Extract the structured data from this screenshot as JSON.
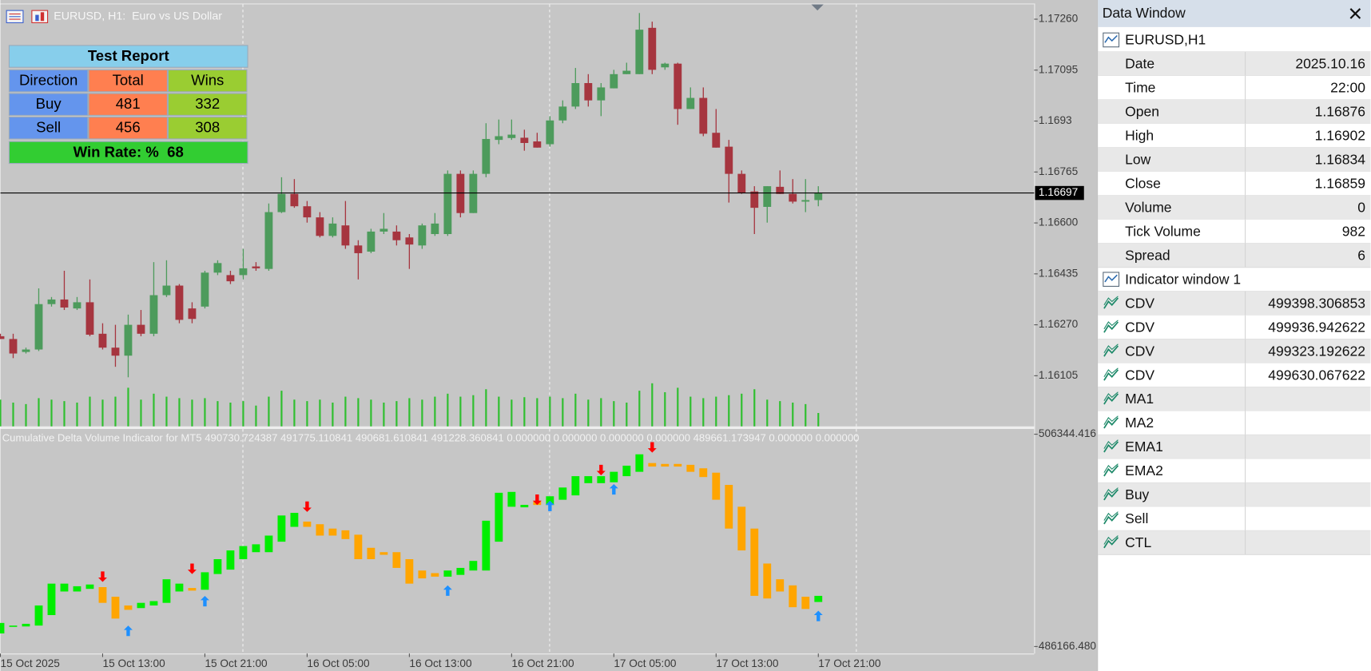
{
  "window_title": "EURUSD, H1:  Euro vs US Dollar",
  "chart_data": [
    {
      "type": "candlestick",
      "categories": [
        "15 Oct 2025",
        null,
        null,
        null,
        null,
        null,
        null,
        null,
        "15 Oct 13:00",
        null,
        null,
        null,
        null,
        null,
        null,
        null,
        "15 Oct 21:00",
        null,
        null,
        null,
        null,
        null,
        null,
        null,
        "16 Oct 05:00",
        null,
        null,
        null,
        null,
        null,
        null,
        null,
        "16 Oct 13:00",
        null,
        null,
        null,
        null,
        null,
        null,
        null,
        "16 Oct 21:00",
        null,
        null,
        null,
        null,
        null,
        null,
        null,
        "17 Oct 05:00",
        null,
        null,
        null,
        null,
        null,
        null,
        null,
        "17 Oct 13:00",
        null,
        null,
        null,
        null,
        null,
        null,
        null,
        "17 Oct 21:00"
      ],
      "open": [
        1.16233,
        1.16224,
        1.16182,
        1.1619,
        1.16337,
        1.16352,
        1.16323,
        1.16343,
        1.16241,
        1.16196,
        1.1617,
        1.1627,
        1.16241,
        1.16366,
        1.16397,
        1.16323,
        1.16329,
        1.16439,
        1.16431,
        1.16431,
        1.16459,
        1.16451,
        1.16635,
        1.16694,
        1.16654,
        1.16618,
        1.16558,
        1.16592,
        1.16527,
        1.16507,
        1.16572,
        1.16572,
        1.16553,
        1.16527,
        1.16564,
        1.16564,
        1.16759,
        1.16632,
        1.16759,
        1.16869,
        1.16875,
        1.16876,
        1.16864,
        1.16855,
        1.16932,
        1.16977,
        1.17053,
        1.16997,
        1.17036,
        1.17082,
        1.17082,
        1.17232,
        1.17104,
        1.17116,
        1.16969,
        1.17005,
        1.16892,
        1.16847,
        1.16759,
        1.16702,
        1.16652,
        1.16717,
        1.16694,
        1.16669,
        1.16674
      ],
      "high": [
        1.16241,
        1.16241,
        1.16196,
        1.16388,
        1.1636,
        1.16445,
        1.1636,
        1.16417,
        1.16275,
        1.1627,
        1.16303,
        1.16318,
        1.16473,
        1.16479,
        1.16402,
        1.16343,
        1.16445,
        1.16479,
        1.16445,
        1.16516,
        1.16473,
        1.16663,
        1.16748,
        1.16742,
        1.16671,
        1.16635,
        1.16618,
        1.16671,
        1.16544,
        1.16581,
        1.16632,
        1.16592,
        1.16564,
        1.16598,
        1.16632,
        1.1677,
        1.1677,
        1.1677,
        1.16923,
        1.16935,
        1.16935,
        1.16902,
        1.16892,
        1.16946,
        1.16997,
        1.17102,
        1.17082,
        1.17053,
        1.17096,
        1.17119,
        1.1728,
        1.17252,
        1.17119,
        1.17119,
        1.17039,
        1.17039,
        1.16969,
        1.16869,
        1.1677,
        1.16719,
        1.16719,
        1.1677,
        1.16742,
        1.16742,
        1.16719
      ],
      "low": [
        1.16224,
        1.16162,
        1.16177,
        1.16185,
        1.16329,
        1.16318,
        1.16318,
        1.16233,
        1.1619,
        1.16134,
        1.161,
        1.16233,
        1.16233,
        1.1636,
        1.16275,
        1.16275,
        1.16323,
        1.16431,
        1.16402,
        1.16417,
        1.16445,
        1.16445,
        1.16632,
        1.16649,
        1.16601,
        1.16553,
        1.16553,
        1.16516,
        1.16417,
        1.16502,
        1.16564,
        1.16527,
        1.16451,
        1.16516,
        1.16558,
        1.16558,
        1.16618,
        1.16632,
        1.16748,
        1.16855,
        1.16869,
        1.16834,
        1.16844,
        1.16847,
        1.16923,
        1.16969,
        1.16977,
        1.16946,
        1.17036,
        1.17082,
        1.17082,
        1.17082,
        1.17096,
        1.16918,
        1.16969,
        1.16881,
        1.16844,
        1.16666,
        1.16694,
        1.16564,
        1.16601,
        1.16694,
        1.16663,
        1.16635,
        1.16654
      ],
      "close": [
        1.16224,
        1.16177,
        1.1619,
        1.16337,
        1.16352,
        1.16326,
        1.16343,
        1.16238,
        1.16196,
        1.1617,
        1.1627,
        1.16241,
        1.16366,
        1.16397,
        1.16286,
        1.16289,
        1.16439,
        1.1647,
        1.16411,
        1.16453,
        1.16453,
        1.16635,
        1.16694,
        1.16654,
        1.16618,
        1.16558,
        1.16598,
        1.16527,
        1.16502,
        1.16572,
        1.16581,
        1.16544,
        1.1653,
        1.16592,
        1.16598,
        1.16759,
        1.16632,
        1.16759,
        1.16872,
        1.16881,
        1.16886,
        1.16859,
        1.16844,
        1.16932,
        1.16977,
        1.17053,
        1.16997,
        1.17039,
        1.17082,
        1.17093,
        1.17226,
        1.17096,
        1.17116,
        1.16969,
        1.17005,
        1.16889,
        1.16844,
        1.16759,
        1.16697,
        1.16649,
        1.16719,
        1.16694,
        1.16669,
        1.16674,
        1.16697
      ],
      "volume": [
        900,
        800,
        750,
        950,
        900,
        850,
        800,
        1000,
        900,
        1000,
        1300,
        900,
        1100,
        1000,
        950,
        900,
        950,
        850,
        800,
        850,
        700,
        1000,
        1200,
        900,
        850,
        900,
        800,
        1000,
        950,
        900,
        800,
        850,
        950,
        900,
        1000,
        1100,
        1000,
        1050,
        1250,
        1000,
        900,
        982,
        950,
        1000,
        950,
        1100,
        900,
        950,
        850,
        800,
        1200,
        1450,
        1150,
        1300,
        1000,
        950,
        1000,
        1050,
        1100,
        1250,
        900,
        850,
        800,
        750,
        450
      ],
      "up_color": "#4d9b5c",
      "down_color": "#a6353f",
      "volume_color": "#2fbf2f",
      "bid": 1.16697,
      "ylim": [
        1.15941,
        1.17308
      ],
      "yticks": [
        {
          "value": 1.1726,
          "label": "1.17260"
        },
        1.17095,
        1.1693,
        {
          "value": 1.16765,
          "label": "1.16765"
        },
        {
          "value": 1.166,
          "label": "1.16600"
        },
        1.16435,
        {
          "value": 1.1627,
          "label": "1.16270"
        },
        1.16105
      ]
    },
    {
      "type": "candlestick",
      "title": "Cumulative Delta Volume Indicator for MT5 490730.724387 491775.110841 490681.610841 491228.360841 0.000000 0.000000 0.000000 0.000000 489661.173947 0.000000 0.000000",
      "open": [
        487411,
        488075,
        488075,
        488158,
        489155,
        491397,
        491397,
        491646,
        491812,
        490899,
        490068,
        489819,
        490068,
        490317,
        491397,
        491729,
        491563,
        493058,
        493473,
        494469,
        495134,
        495134,
        496130,
        497542,
        498040,
        497791,
        497376,
        497210,
        496794,
        495549,
        495134,
        495134,
        494469,
        493390,
        493141,
        492808,
        492975,
        493390,
        493390,
        496130,
        499452,
        499398.306853,
        499950,
        499618,
        500116,
        500531,
        501694,
        501694,
        501777,
        502358,
        502773,
        503604,
        503521,
        503521,
        503438,
        503105,
        502690,
        501528,
        499452,
        497376,
        494054,
        492559,
        491978,
        490899,
        490400
      ],
      "close": [
        488407,
        488158,
        488324,
        490068,
        492144,
        492144,
        491895,
        492061,
        490317,
        488823,
        489653,
        490317,
        490483,
        492559,
        492144,
        491480,
        493224,
        494469,
        495300,
        495715,
        495881,
        496711,
        498621,
        498870,
        497542,
        496711,
        496711,
        496379,
        494469,
        494469,
        494884,
        493639,
        492144,
        492642,
        492808,
        493390,
        493639,
        494303,
        498123,
        500780,
        500863,
        499630.067622,
        499618,
        500448,
        501279,
        502358,
        502358,
        502358,
        502773,
        503355,
        504434,
        503272,
        503272,
        503272,
        502773,
        502275,
        500116,
        497376,
        495300,
        490982,
        490732,
        491397,
        489902,
        489736,
        490982
      ],
      "buy": [
        null,
        null,
        null,
        null,
        null,
        null,
        null,
        null,
        null,
        null,
        487660,
        null,
        null,
        null,
        null,
        null,
        490483,
        null,
        null,
        null,
        null,
        null,
        null,
        null,
        null,
        null,
        null,
        null,
        null,
        null,
        null,
        null,
        null,
        null,
        null,
        491480,
        null,
        null,
        null,
        null,
        null,
        null,
        null,
        499535,
        null,
        null,
        null,
        null,
        501112,
        null,
        null,
        null,
        null,
        null,
        null,
        null,
        null,
        null,
        null,
        null,
        null,
        null,
        null,
        null,
        489072
      ],
      "sell": [
        null,
        null,
        null,
        null,
        null,
        null,
        null,
        null,
        492808,
        null,
        null,
        null,
        null,
        null,
        null,
        493556,
        null,
        null,
        null,
        null,
        null,
        null,
        null,
        null,
        499452,
        null,
        null,
        null,
        null,
        null,
        null,
        null,
        null,
        null,
        null,
        null,
        null,
        null,
        null,
        null,
        null,
        null,
        500116,
        null,
        null,
        null,
        null,
        502939,
        null,
        null,
        null,
        505098,
        null,
        null,
        null,
        null,
        null,
        null,
        null,
        null,
        null,
        null,
        null,
        null,
        null
      ],
      "up_color": "#00ee00",
      "down_color": "#ffa500",
      "buy_color": "#1e90ff",
      "sell_color": "#ff0000",
      "ylim": [
        485501,
        506842
      ],
      "yticks": [
        506344.416,
        {
          "value": 486166.48,
          "label": "486166.480"
        }
      ]
    }
  ],
  "report": {
    "title": "Test Report",
    "header": [
      "Direction",
      "Total",
      "Wins"
    ],
    "rows": [
      [
        "Buy",
        481,
        332
      ],
      [
        "Sell",
        456,
        308
      ]
    ],
    "footer": "Win Rate: %  68"
  },
  "data_window": {
    "title": "Data Window",
    "symbol": "EURUSD,H1",
    "fields": [
      [
        "Date",
        "2025.10.16"
      ],
      [
        "Time",
        "22:00"
      ],
      [
        "Open",
        "1.16876"
      ],
      [
        "High",
        "1.16902"
      ],
      [
        "Low",
        "1.16834"
      ],
      [
        "Close",
        "1.16859"
      ],
      [
        "Volume",
        "0"
      ],
      [
        "Tick Volume",
        "982"
      ],
      [
        "Spread",
        "6"
      ]
    ],
    "indicator": "Indicator window 1",
    "buffers": [
      [
        "CDV",
        "499398.306853"
      ],
      [
        "CDV",
        "499936.942622"
      ],
      [
        "CDV",
        "499323.192622"
      ],
      [
        "CDV",
        "499630.067622"
      ],
      [
        "MA1"
      ],
      [
        "MA2"
      ],
      [
        "EMA1"
      ],
      [
        "EMA2"
      ],
      [
        "Buy"
      ],
      [
        "Sell"
      ],
      [
        "CTL"
      ]
    ]
  }
}
